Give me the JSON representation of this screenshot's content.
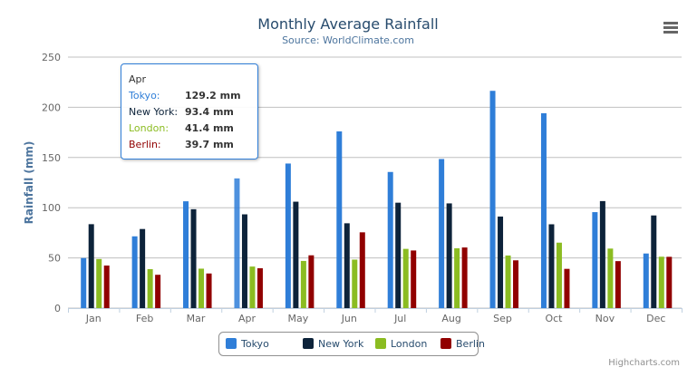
{
  "chart_data": {
    "type": "bar",
    "title": "Monthly Average Rainfall",
    "subtitle": "Source: WorldClimate.com",
    "xlabel": "",
    "ylabel": "Rainfall (mm)",
    "ylim": [
      0,
      250
    ],
    "yticks": [
      "0",
      "50",
      "100",
      "150",
      "200",
      "250"
    ],
    "grid": true,
    "legend": "bottom",
    "categories": [
      "Jan",
      "Feb",
      "Mar",
      "Apr",
      "May",
      "Jun",
      "Jul",
      "Aug",
      "Sep",
      "Oct",
      "Nov",
      "Dec"
    ],
    "series": [
      {
        "name": "Tokyo",
        "color": "#2f7ed8",
        "values": [
          49.9,
          71.5,
          106.4,
          129.2,
          144.0,
          176.0,
          135.6,
          148.5,
          216.4,
          194.1,
          95.6,
          54.4
        ]
      },
      {
        "name": "New York",
        "color": "#0d233a",
        "values": [
          83.6,
          78.8,
          98.5,
          93.4,
          106.0,
          84.5,
          105.0,
          104.3,
          91.2,
          83.5,
          106.6,
          92.3
        ]
      },
      {
        "name": "London",
        "color": "#8bbc21",
        "values": [
          48.9,
          38.8,
          39.3,
          41.4,
          47.0,
          48.3,
          59.0,
          59.6,
          52.4,
          65.2,
          59.3,
          51.2
        ]
      },
      {
        "name": "Berlin",
        "color": "#910000",
        "values": [
          42.4,
          33.2,
          34.5,
          39.7,
          52.6,
          75.5,
          57.4,
          60.4,
          47.6,
          39.1,
          46.8,
          51.1
        ]
      }
    ]
  },
  "tooltip": {
    "header": "Apr",
    "rows": [
      {
        "name": "Tokyo:",
        "value": "129.2 mm",
        "color": "#2f7ed8"
      },
      {
        "name": "New York:",
        "value": "93.4 mm",
        "color": "#0d233a"
      },
      {
        "name": "London:",
        "value": "41.4 mm",
        "color": "#8bbc21"
      },
      {
        "name": "Berlin:",
        "value": "39.7 mm",
        "color": "#910000"
      }
    ]
  },
  "credits": "Highcharts.com",
  "menu_icon": "hamburger-menu-icon"
}
